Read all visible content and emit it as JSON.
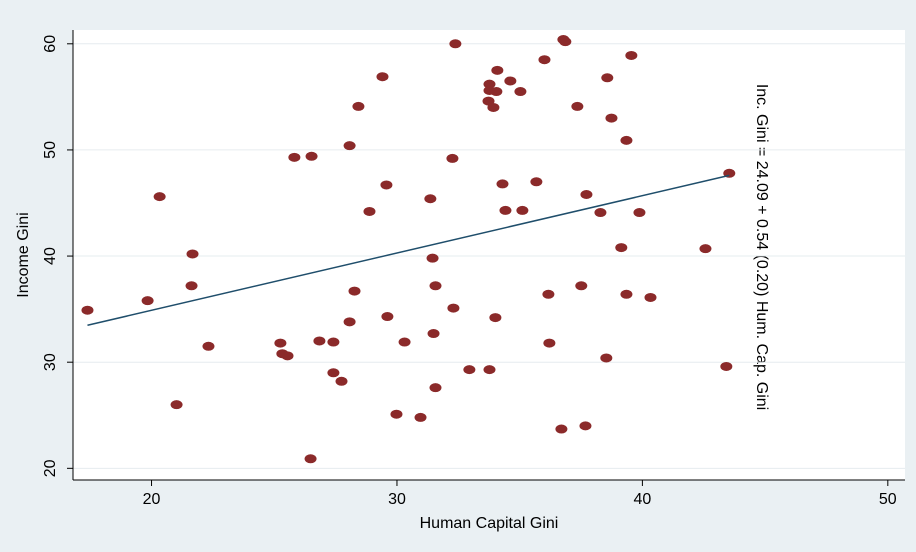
{
  "chart_data": {
    "type": "scatter",
    "xlabel": "Human Capital Gini",
    "ylabel": "Income Gini",
    "annotation": "Inc. Gini = 24.09 + 0.54 (0.20) Hum. Cap. Gini",
    "xlim": [
      16.8,
      50.7
    ],
    "ylim": [
      18.9,
      61.3
    ],
    "xticks": [
      20,
      30,
      40,
      50
    ],
    "yticks": [
      20,
      30,
      40,
      50,
      60
    ],
    "grid": true,
    "color": "#8b2a2a",
    "x": [
      17.39,
      19.84,
      20.33,
      21.67,
      21.63,
      21.02,
      22.32,
      25.25,
      25.33,
      25.54,
      25.82,
      26.52,
      26.48,
      26.84,
      27.41,
      27.41,
      27.74,
      28.07,
      28.07,
      28.27,
      28.43,
      28.88,
      29.41,
      29.57,
      29.61,
      29.98,
      30.31,
      30.96,
      32.26,
      32.38,
      32.3,
      31.36,
      31.45,
      31.57,
      31.49,
      31.57,
      32.95,
      33.77,
      34.01,
      33.77,
      33.77,
      33.73,
      33.93,
      34.05,
      34.09,
      34.62,
      34.3,
      34.42,
      35.03,
      35.11,
      35.68,
      36.01,
      36.17,
      36.21,
      36.7,
      36.78,
      36.86,
      37.35,
      37.51,
      37.68,
      37.72,
      38.29,
      38.53,
      38.57,
      38.74,
      39.14,
      39.35,
      39.35,
      39.55,
      39.88,
      40.33,
      42.57,
      43.42,
      43.54
    ],
    "values": [
      34.9,
      35.8,
      45.6,
      40.2,
      37.2,
      26.0,
      31.5,
      31.8,
      30.8,
      30.6,
      49.3,
      49.4,
      20.9,
      32.0,
      31.9,
      29.0,
      28.2,
      33.8,
      50.4,
      36.7,
      54.1,
      44.2,
      56.9,
      46.7,
      34.3,
      25.1,
      31.9,
      24.8,
      49.2,
      60.0,
      35.1,
      45.4,
      39.8,
      37.2,
      32.7,
      27.6,
      29.3,
      29.3,
      34.2,
      56.2,
      55.6,
      54.6,
      54.0,
      55.5,
      57.5,
      56.5,
      46.8,
      44.3,
      55.5,
      44.3,
      47.0,
      58.5,
      36.4,
      31.8,
      23.7,
      60.4,
      60.2,
      54.1,
      37.2,
      24.0,
      45.8,
      44.1,
      30.4,
      56.8,
      53.0,
      40.8,
      50.9,
      36.4,
      58.9,
      44.1,
      36.1,
      40.7,
      29.6,
      47.8
    ],
    "fit": {
      "color": "#1f4e6b",
      "x": [
        17.39,
        43.54
      ],
      "values": [
        33.48,
        47.6
      ]
    }
  }
}
